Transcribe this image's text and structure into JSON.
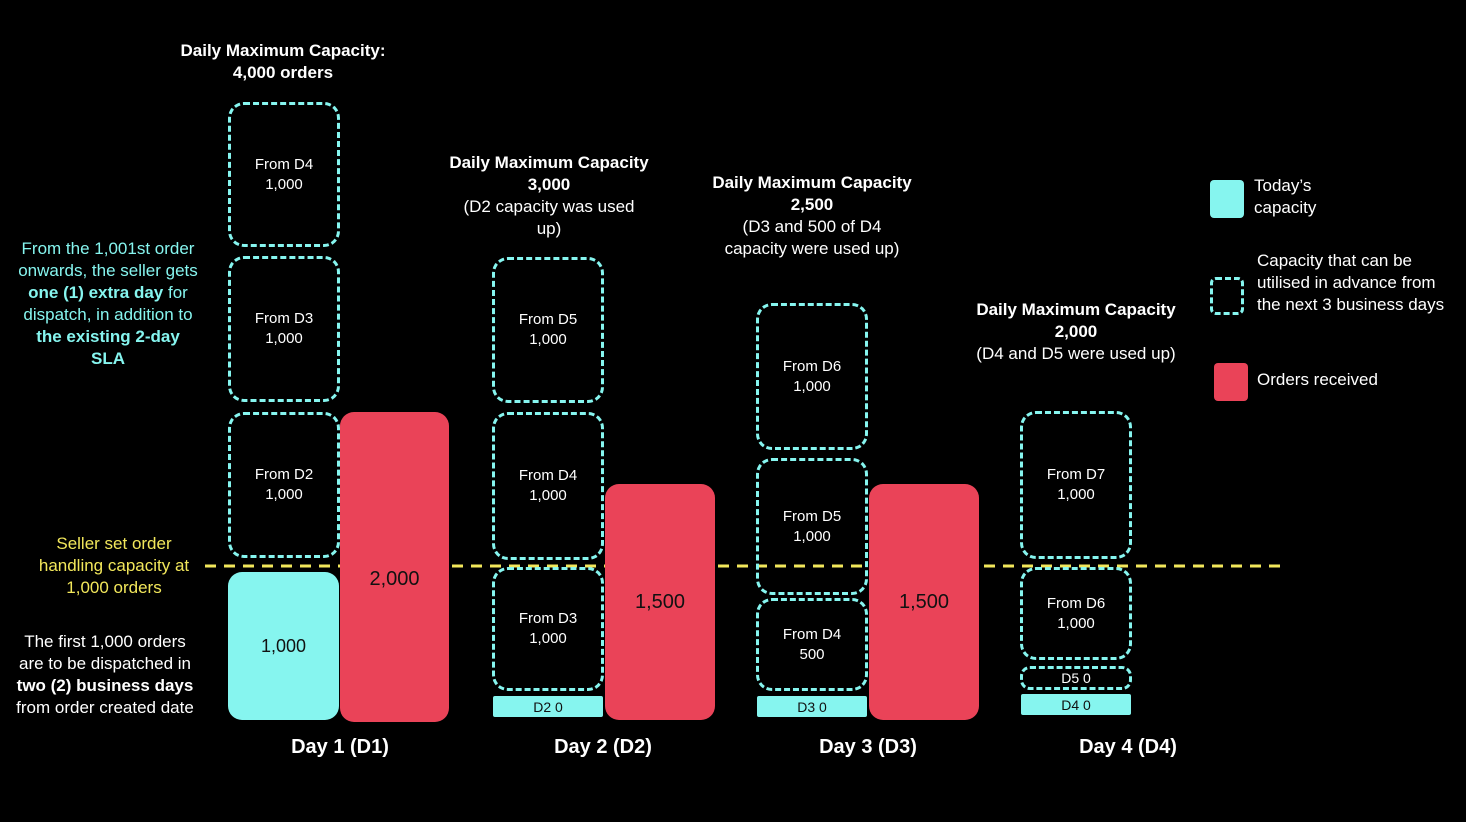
{
  "threshold_line": {
    "label": "Seller set order handling capacity at 1,000 orders",
    "color": "#f2e75b"
  },
  "colors": {
    "todays_capacity": "#86f5ef",
    "orders_received": "#ea4358",
    "advance_capacity_border": "#86f5ef"
  },
  "left_notes": {
    "cyan_note": {
      "part1": "From the 1,001st order onwards, the seller gets ",
      "bold1": "one (1) extra day",
      "part2": " for dispatch, in addition to ",
      "bold2": "the existing 2-day SLA"
    },
    "yellow_note": "Seller set order handling capacity at 1,000 orders",
    "white_note": {
      "part1": "The first 1,000 orders are to be dispatched in ",
      "bold1": "two (2) business days",
      "part2": " from order created date"
    }
  },
  "days": [
    {
      "label": "Day 1 (D1)",
      "header_bold": "Daily Maximum Capacity: 4,000 orders",
      "header_note": "",
      "todays_capacity": "1,000",
      "orders_received": "2,000",
      "advance_blocks": [
        {
          "from": "From D4",
          "value": "1,000"
        },
        {
          "from": "From D3",
          "value": "1,000"
        },
        {
          "from": "From D2",
          "value": "1,000"
        }
      ]
    },
    {
      "label": "Day 2 (D2)",
      "header_bold": "Daily Maximum Capacity 3,000",
      "header_note": "(D2 capacity was used up)",
      "todays_capacity": "D2 0",
      "orders_received": "1,500",
      "advance_blocks": [
        {
          "from": "From D5",
          "value": "1,000"
        },
        {
          "from": "From D4",
          "value": "1,000"
        },
        {
          "from": "From D3",
          "value": "1,000"
        }
      ]
    },
    {
      "label": "Day 3 (D3)",
      "header_bold": "Daily Maximum Capacity 2,500",
      "header_note": "(D3 and 500 of D4 capacity were used up)",
      "todays_capacity": "D3 0",
      "orders_received": "1,500",
      "advance_blocks": [
        {
          "from": "From D6",
          "value": "1,000"
        },
        {
          "from": "From D5",
          "value": "1,000"
        },
        {
          "from": "From D4",
          "value": "500"
        }
      ]
    },
    {
      "label": "Day 4 (D4)",
      "header_bold": "Daily Maximum Capacity 2,000",
      "header_note": "(D4 and D5 were used up)",
      "todays_capacity": "D4 0",
      "orders_received": "",
      "advance_blocks": [
        {
          "from": "From D7",
          "value": "1,000"
        },
        {
          "from": "From D6",
          "value": "1,000"
        },
        {
          "from": "D5 0",
          "value": ""
        }
      ]
    }
  ],
  "legend": [
    {
      "label": "Today’s capacity",
      "swatch": "cyan-solid"
    },
    {
      "label": "Capacity that can be utilised in advance from the next 3 business days",
      "swatch": "cyan-dashed"
    },
    {
      "label": "Orders received",
      "swatch": "red-solid"
    }
  ]
}
